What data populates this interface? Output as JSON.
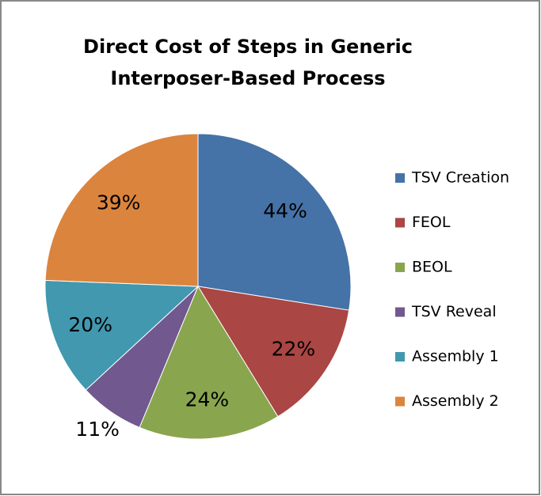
{
  "chart_data": {
    "type": "pie",
    "title": "Direct Cost of Steps in Generic",
    "subtitle": "Interposer-Based Process",
    "categories": [
      "TSV Creation",
      "FEOL",
      "BEOL",
      "TSV Reveal",
      "Assembly 1",
      "Assembly 2"
    ],
    "values": [
      44,
      22,
      24,
      11,
      20,
      39
    ],
    "value_labels": [
      "44%",
      "22%",
      "24%",
      "11%",
      "20%",
      "39%"
    ],
    "colors": [
      "#4572a7",
      "#aa4643",
      "#89a54e",
      "#71588f",
      "#4198af",
      "#db843d"
    ],
    "legend": "right"
  }
}
